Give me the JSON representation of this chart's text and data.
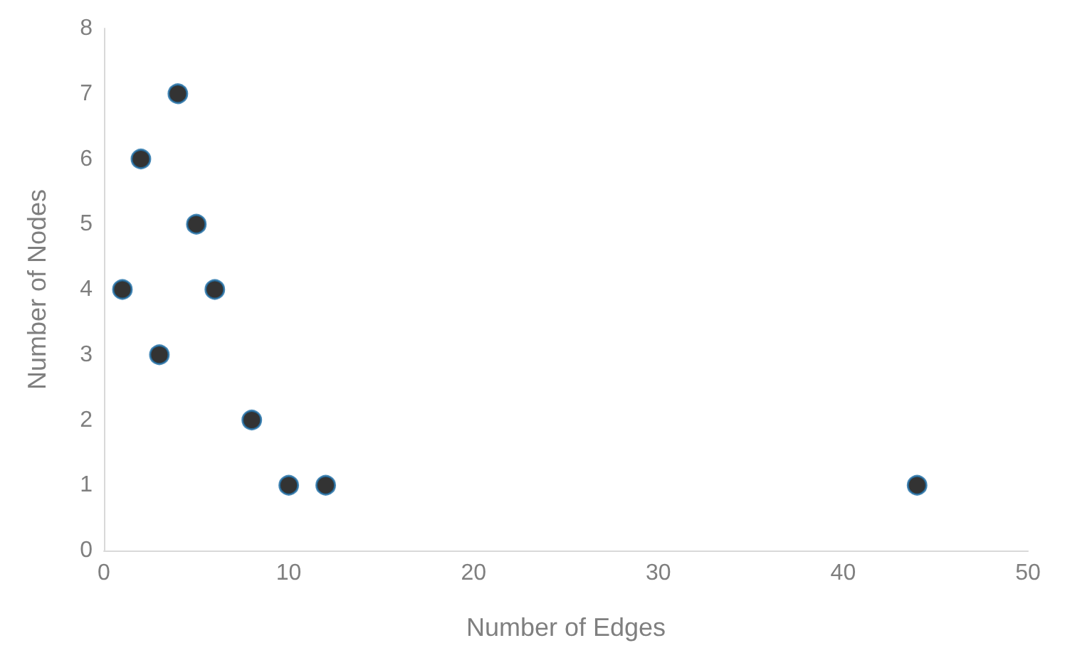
{
  "chart_data": {
    "type": "scatter",
    "xlabel": "Number of Edges",
    "ylabel": "Number of Nodes",
    "x": [
      1,
      2,
      3,
      4,
      5,
      6,
      8,
      10,
      12,
      44
    ],
    "values": [
      4,
      6,
      3,
      7,
      5,
      4,
      2,
      1,
      1,
      1
    ],
    "color": "#000000",
    "xlim": [
      0,
      50
    ],
    "xticks": [
      0,
      10,
      20,
      30,
      40,
      50
    ],
    "ylim": [
      0,
      8
    ],
    "yticks": [
      0,
      1,
      2,
      3,
      4,
      5,
      6,
      7,
      8
    ],
    "grid": false,
    "marker": "circle"
  }
}
